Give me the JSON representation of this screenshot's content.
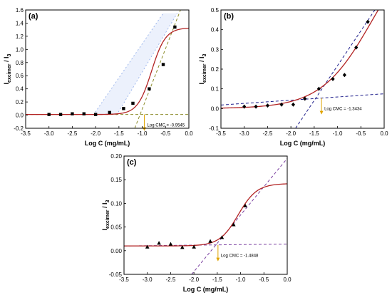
{
  "colors": {
    "fit_curve": "#b22222",
    "points": "#000000",
    "cmc_marker": "#e0a400",
    "panel_a_tangent": "#8c8c2a",
    "panel_b_tangent": "#1f1f8c",
    "panel_c_tangent": "#7a3fa0",
    "error_band": "#c9d7f5",
    "axes": "#000000"
  },
  "chart_data": [
    {
      "id": "a",
      "type": "scatter",
      "panel_label": "(a)",
      "xlabel": "Log C (mg/mL)",
      "ylabel_main": "I",
      "ylabel_sub": "excimer",
      "ylabel_tail": " / I",
      "ylabel_tail_sub": "3",
      "xlim": [
        -3.5,
        0.0
      ],
      "ylim": [
        -0.2,
        1.6
      ],
      "xticks": [
        -3.5,
        -3.0,
        -2.5,
        -2.0,
        -1.5,
        -1.0,
        -0.5,
        0.0
      ],
      "xtick_labels": [
        "-3.5",
        "-3.0",
        "-2.5",
        "-2.0",
        "-1.5",
        "-1.0",
        "-0.5",
        "0.0"
      ],
      "yticks": [
        -0.2,
        0.0,
        0.2,
        0.4,
        0.6,
        0.8,
        1.0,
        1.2,
        1.4,
        1.6
      ],
      "ytick_labels": [
        "-0.2",
        "0.0",
        "0.2",
        "0.4",
        "0.6",
        "0.8",
        "1.0",
        "1.2",
        "1.4",
        "1.6"
      ],
      "marker": "square",
      "points": [
        {
          "x": -3.0,
          "y": 0.01
        },
        {
          "x": -2.75,
          "y": 0.01
        },
        {
          "x": -2.5,
          "y": 0.02
        },
        {
          "x": -2.25,
          "y": 0.02
        },
        {
          "x": -2.0,
          "y": 0.01
        },
        {
          "x": -1.7,
          "y": 0.04
        },
        {
          "x": -1.4,
          "y": 0.1
        },
        {
          "x": -1.2,
          "y": 0.18
        },
        {
          "x": -0.85,
          "y": 0.4
        },
        {
          "x": -0.55,
          "y": 0.77
        },
        {
          "x": -0.3,
          "y": 1.34
        }
      ],
      "fit": {
        "A1": 0.01,
        "A2": 1.33,
        "x0": -0.8,
        "dx": 0.15
      },
      "baseline": {
        "x1": -3.5,
        "y1": 0.01,
        "x2": 0.0,
        "y2": 0.01
      },
      "tangent": {
        "x1": -1.16,
        "y1": -0.2,
        "x2": -0.18,
        "y2": 1.6
      },
      "band": {
        "upper": {
          "x1": -2.05,
          "y1": 0.0,
          "x2": -0.55,
          "y2": 1.55
        },
        "lower": {
          "x1": -1.55,
          "y1": 0.0,
          "x2": -0.25,
          "y2": 1.55
        }
      },
      "cmc_x": -0.9545,
      "cmc_label": "Log CMC = -0.9545"
    },
    {
      "id": "b",
      "type": "scatter",
      "panel_label": "(b)",
      "xlabel": "Log C (mg/mL)",
      "ylabel_main": "I",
      "ylabel_sub": "excimer",
      "ylabel_tail": " / I",
      "ylabel_tail_sub": "3",
      "xlim": [
        -3.5,
        0.0
      ],
      "ylim": [
        -0.1,
        0.5
      ],
      "xticks": [
        -3.5,
        -3.0,
        -2.5,
        -2.0,
        -1.5,
        -1.0,
        -0.5,
        0.0
      ],
      "xtick_labels": [
        "-3.5",
        "-3.0",
        "-2.5",
        "-2.0",
        "-1.5",
        "-1.0",
        "-0.5",
        "0.0"
      ],
      "yticks": [
        -0.1,
        0.0,
        0.1,
        0.2,
        0.3,
        0.4,
        0.5
      ],
      "ytick_labels": [
        "-0.1",
        "0.0",
        "0.1",
        "0.2",
        "0.3",
        "0.4",
        "0.5"
      ],
      "marker": "diamond",
      "points": [
        {
          "x": -3.0,
          "y": 0.01
        },
        {
          "x": -2.75,
          "y": 0.01
        },
        {
          "x": -2.5,
          "y": 0.015
        },
        {
          "x": -2.2,
          "y": 0.02
        },
        {
          "x": -1.95,
          "y": 0.02
        },
        {
          "x": -1.7,
          "y": 0.05
        },
        {
          "x": -1.4,
          "y": 0.1
        },
        {
          "x": -1.1,
          "y": 0.15
        },
        {
          "x": -0.85,
          "y": 0.17
        },
        {
          "x": -0.6,
          "y": 0.31
        },
        {
          "x": -0.35,
          "y": 0.44
        }
      ],
      "fit": {
        "A1": 0.0,
        "A2": 0.9,
        "x0": -0.25,
        "dx": 0.55
      },
      "baseline": {
        "x1": -3.5,
        "y1": 0.018,
        "x2": 0.0,
        "y2": 0.075
      },
      "tangent": {
        "x1": -1.9,
        "y1": -0.1,
        "x2": -0.2,
        "y2": 0.5
      },
      "band": null,
      "cmc_x": -1.3434,
      "cmc_label": "Log CMC = -1.3434"
    },
    {
      "id": "c",
      "type": "scatter",
      "panel_label": "(c)",
      "xlabel": "Log C (mg/mL)",
      "ylabel_main": "I",
      "ylabel_sub": "excimer",
      "ylabel_tail": " / I",
      "ylabel_tail_sub": "3",
      "xlim": [
        -3.5,
        0.0
      ],
      "ylim": [
        -0.05,
        0.2
      ],
      "xticks": [
        -3.5,
        -3.0,
        -2.5,
        -2.0,
        -1.5,
        -1.0,
        -0.5,
        0.0
      ],
      "xtick_labels": [
        "-3.5",
        "-3.0",
        "-2.5",
        "-2.0",
        "-1.5",
        "-1.0",
        "-0.5",
        "0.0"
      ],
      "yticks": [
        -0.05,
        0.0,
        0.05,
        0.1,
        0.15,
        0.2
      ],
      "ytick_labels": [
        "-0.05",
        "0.00",
        "0.05",
        "0.10",
        "0.15",
        "0.20"
      ],
      "marker": "triangle",
      "points": [
        {
          "x": -3.0,
          "y": 0.008
        },
        {
          "x": -2.75,
          "y": 0.016
        },
        {
          "x": -2.5,
          "y": 0.014
        },
        {
          "x": -2.25,
          "y": 0.007
        },
        {
          "x": -2.0,
          "y": 0.008
        },
        {
          "x": -1.65,
          "y": 0.02
        },
        {
          "x": -1.4,
          "y": 0.028
        },
        {
          "x": -1.15,
          "y": 0.055
        },
        {
          "x": -0.9,
          "y": 0.095
        }
      ],
      "fit": {
        "A1": 0.01,
        "A2": 0.142,
        "x0": -1.05,
        "dx": 0.2
      },
      "baseline": {
        "x1": -3.5,
        "y1": 0.01,
        "x2": 0.0,
        "y2": 0.014
      },
      "tangent": {
        "x1": -2.05,
        "y1": -0.05,
        "x2": 0.0,
        "y2": 0.195
      },
      "band": null,
      "cmc_x": -1.4848,
      "cmc_label": "Log CMC = -1.4848"
    }
  ]
}
